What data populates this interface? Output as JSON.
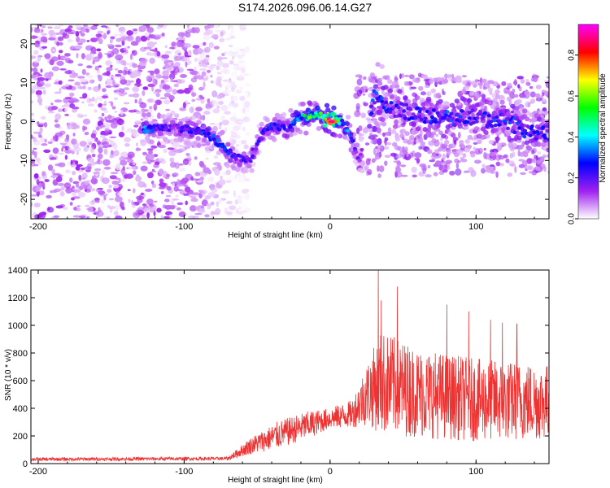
{
  "page_title": "S174.2026.096.06.14.G27",
  "chart_data": [
    {
      "type": "heatmap",
      "name": "spectrogram",
      "title": "S174.2026.096.06.14.G27",
      "xlabel": "Height of straight line (km)",
      "ylabel": "Frequency (Hz)",
      "xlim": [
        -205,
        150
      ],
      "ylim": [
        -25,
        25
      ],
      "xticks": [
        -200,
        -100,
        0,
        100
      ],
      "yticks": [
        20,
        10,
        0,
        -10,
        -20
      ],
      "colorbar": {
        "label": "Normalized spectral amplitude",
        "range": [
          0,
          0.95
        ],
        "ticks": [
          "0.0",
          "0.2",
          "0.4",
          "0.6",
          "0.8"
        ],
        "stops": [
          "#ffffff",
          "#a020f0",
          "#0000ff",
          "#00ffff",
          "#00ff00",
          "#ffff00",
          "#ff0000",
          "#ff00ff"
        ]
      },
      "noise_region": {
        "x_range": [
          -205,
          -68
        ],
        "density": "high",
        "mean_amplitude": 0.08
      },
      "signal_track": [
        {
          "x": -128,
          "y": -2,
          "amp": 0.35
        },
        {
          "x": -110,
          "y": -1.5,
          "amp": 0.2
        },
        {
          "x": -95,
          "y": -2,
          "amp": 0.25
        },
        {
          "x": -85,
          "y": -3,
          "amp": 0.3
        },
        {
          "x": -75,
          "y": -6,
          "amp": 0.3
        },
        {
          "x": -65,
          "y": -9,
          "amp": 0.25
        },
        {
          "x": -55,
          "y": -10,
          "amp": 0.2
        },
        {
          "x": -50,
          "y": -6,
          "amp": 0.2
        },
        {
          "x": -45,
          "y": -2,
          "amp": 0.25
        },
        {
          "x": -38,
          "y": -1,
          "amp": 0.3
        },
        {
          "x": -30,
          "y": -2,
          "amp": 0.25
        },
        {
          "x": -22,
          "y": 1,
          "amp": 0.35
        },
        {
          "x": -15,
          "y": 1,
          "amp": 0.55
        },
        {
          "x": -8,
          "y": 2,
          "amp": 0.45
        },
        {
          "x": 0,
          "y": 0,
          "amp": 0.9
        },
        {
          "x": 8,
          "y": 0,
          "amp": 0.4
        },
        {
          "x": 15,
          "y": -4,
          "amp": 0.3
        },
        {
          "x": 20,
          "y": -10,
          "amp": 0.15
        },
        {
          "x": 30,
          "y": 6,
          "amp": 0.3
        },
        {
          "x": 45,
          "y": 3,
          "amp": 0.25
        },
        {
          "x": 60,
          "y": 2,
          "amp": 0.25
        },
        {
          "x": 80,
          "y": 1,
          "amp": 0.3
        },
        {
          "x": 100,
          "y": 1,
          "amp": 0.25
        },
        {
          "x": 120,
          "y": 0,
          "amp": 0.3
        },
        {
          "x": 140,
          "y": -3,
          "amp": 0.25
        }
      ]
    },
    {
      "type": "line",
      "name": "snr",
      "xlabel": "Height of straight line (km)",
      "ylabel": "SNR (10 * v/v)",
      "xlim": [
        -205,
        150
      ],
      "ylim": [
        0,
        1400
      ],
      "xticks": [
        -200,
        -100,
        0,
        100
      ],
      "yticks": [
        0,
        200,
        400,
        600,
        800,
        1000,
        1200,
        1400
      ],
      "color": "#ee3333",
      "envelope": [
        {
          "x": -205,
          "mean": 30,
          "spread": 25
        },
        {
          "x": -70,
          "mean": 35,
          "spread": 25
        },
        {
          "x": -55,
          "mean": 120,
          "spread": 120
        },
        {
          "x": -35,
          "mean": 200,
          "spread": 200
        },
        {
          "x": -15,
          "mean": 270,
          "spread": 200
        },
        {
          "x": 0,
          "mean": 320,
          "spread": 150
        },
        {
          "x": 15,
          "mean": 350,
          "spread": 200
        },
        {
          "x": 25,
          "mean": 480,
          "spread": 450
        },
        {
          "x": 35,
          "mean": 550,
          "spread": 750
        },
        {
          "x": 60,
          "mean": 480,
          "spread": 650
        },
        {
          "x": 100,
          "mean": 430,
          "spread": 600
        },
        {
          "x": 150,
          "mean": 420,
          "spread": 550
        }
      ],
      "peaks": [
        {
          "x": 33,
          "y": 1400
        },
        {
          "x": 35,
          "y": 1180
        },
        {
          "x": 46,
          "y": 1280
        },
        {
          "x": 80,
          "y": 1150
        },
        {
          "x": 95,
          "y": 1100
        },
        {
          "x": 110,
          "y": 1040
        },
        {
          "x": 118,
          "y": 1020
        },
        {
          "x": 128,
          "y": 1010
        }
      ]
    }
  ]
}
